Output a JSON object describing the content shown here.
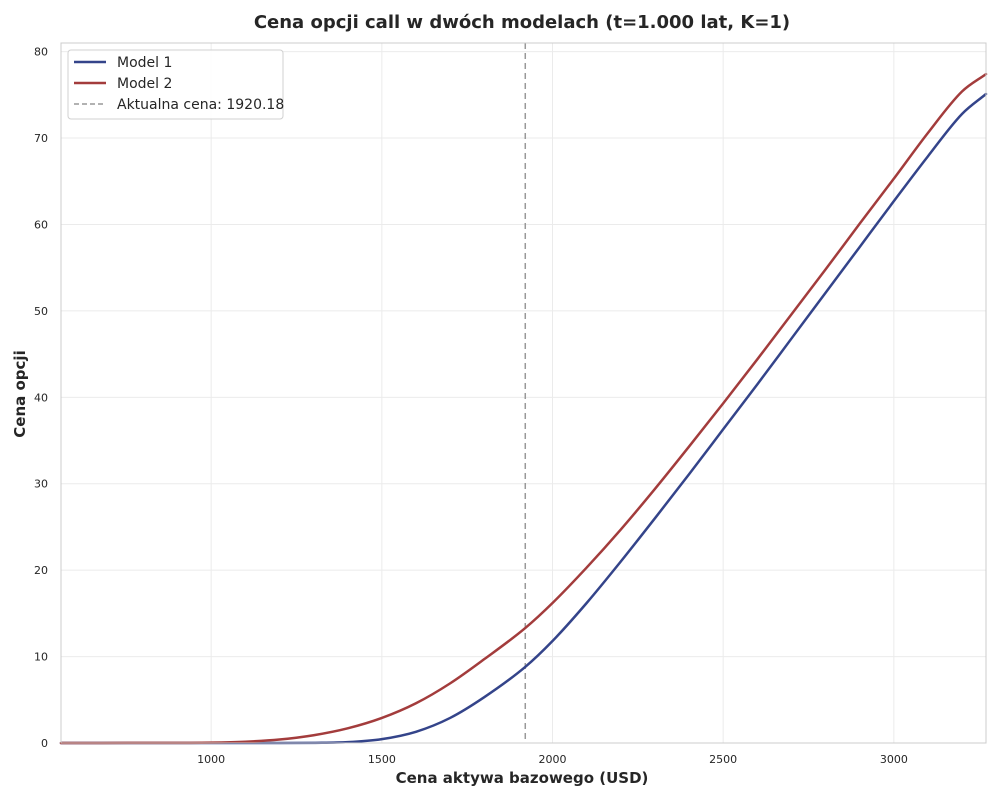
{
  "chart_data": {
    "type": "line",
    "title": "Cena opcji call w dwóch modelach (t=1.000 lat, K=1)",
    "xlabel": "Cena aktywa bazowego (USD)",
    "ylabel": "Cena opcji",
    "xlim": [
      560,
      3270
    ],
    "ylim": [
      0,
      81
    ],
    "x_ticks": [
      1000,
      1500,
      2000,
      2500,
      3000
    ],
    "y_ticks": [
      0,
      10,
      20,
      30,
      40,
      50,
      60,
      70,
      80
    ],
    "grid": true,
    "legend_position": "top-left",
    "x": [
      560,
      800,
      1000,
      1100,
      1200,
      1300,
      1400,
      1500,
      1600,
      1700,
      1800,
      1920,
      2000,
      2100,
      2200,
      2300,
      2400,
      2500,
      2600,
      2700,
      2800,
      2900,
      3000,
      3100,
      3200,
      3270
    ],
    "series": [
      {
        "name": "Model 1",
        "color": "#34448a",
        "values": [
          0,
          0,
          0,
          0,
          0,
          0.02,
          0.1,
          0.45,
          1.3,
          2.9,
          5.3,
          8.8,
          11.8,
          16.2,
          21.0,
          26.0,
          31.1,
          36.3,
          41.5,
          46.8,
          52.1,
          57.4,
          62.7,
          67.9,
          72.8,
          75.1
        ]
      },
      {
        "name": "Model 2",
        "color": "#a33c3c",
        "values": [
          0,
          0.01,
          0.05,
          0.15,
          0.4,
          0.9,
          1.7,
          2.9,
          4.6,
          6.9,
          9.7,
          13.3,
          16.2,
          20.3,
          24.7,
          29.4,
          34.3,
          39.3,
          44.4,
          49.6,
          54.8,
          60.1,
          65.3,
          70.6,
          75.4,
          77.4
        ]
      }
    ],
    "reference_line": {
      "x": 1920.18,
      "color": "#999999",
      "label": "Aktualna cena: 1920.18"
    }
  }
}
